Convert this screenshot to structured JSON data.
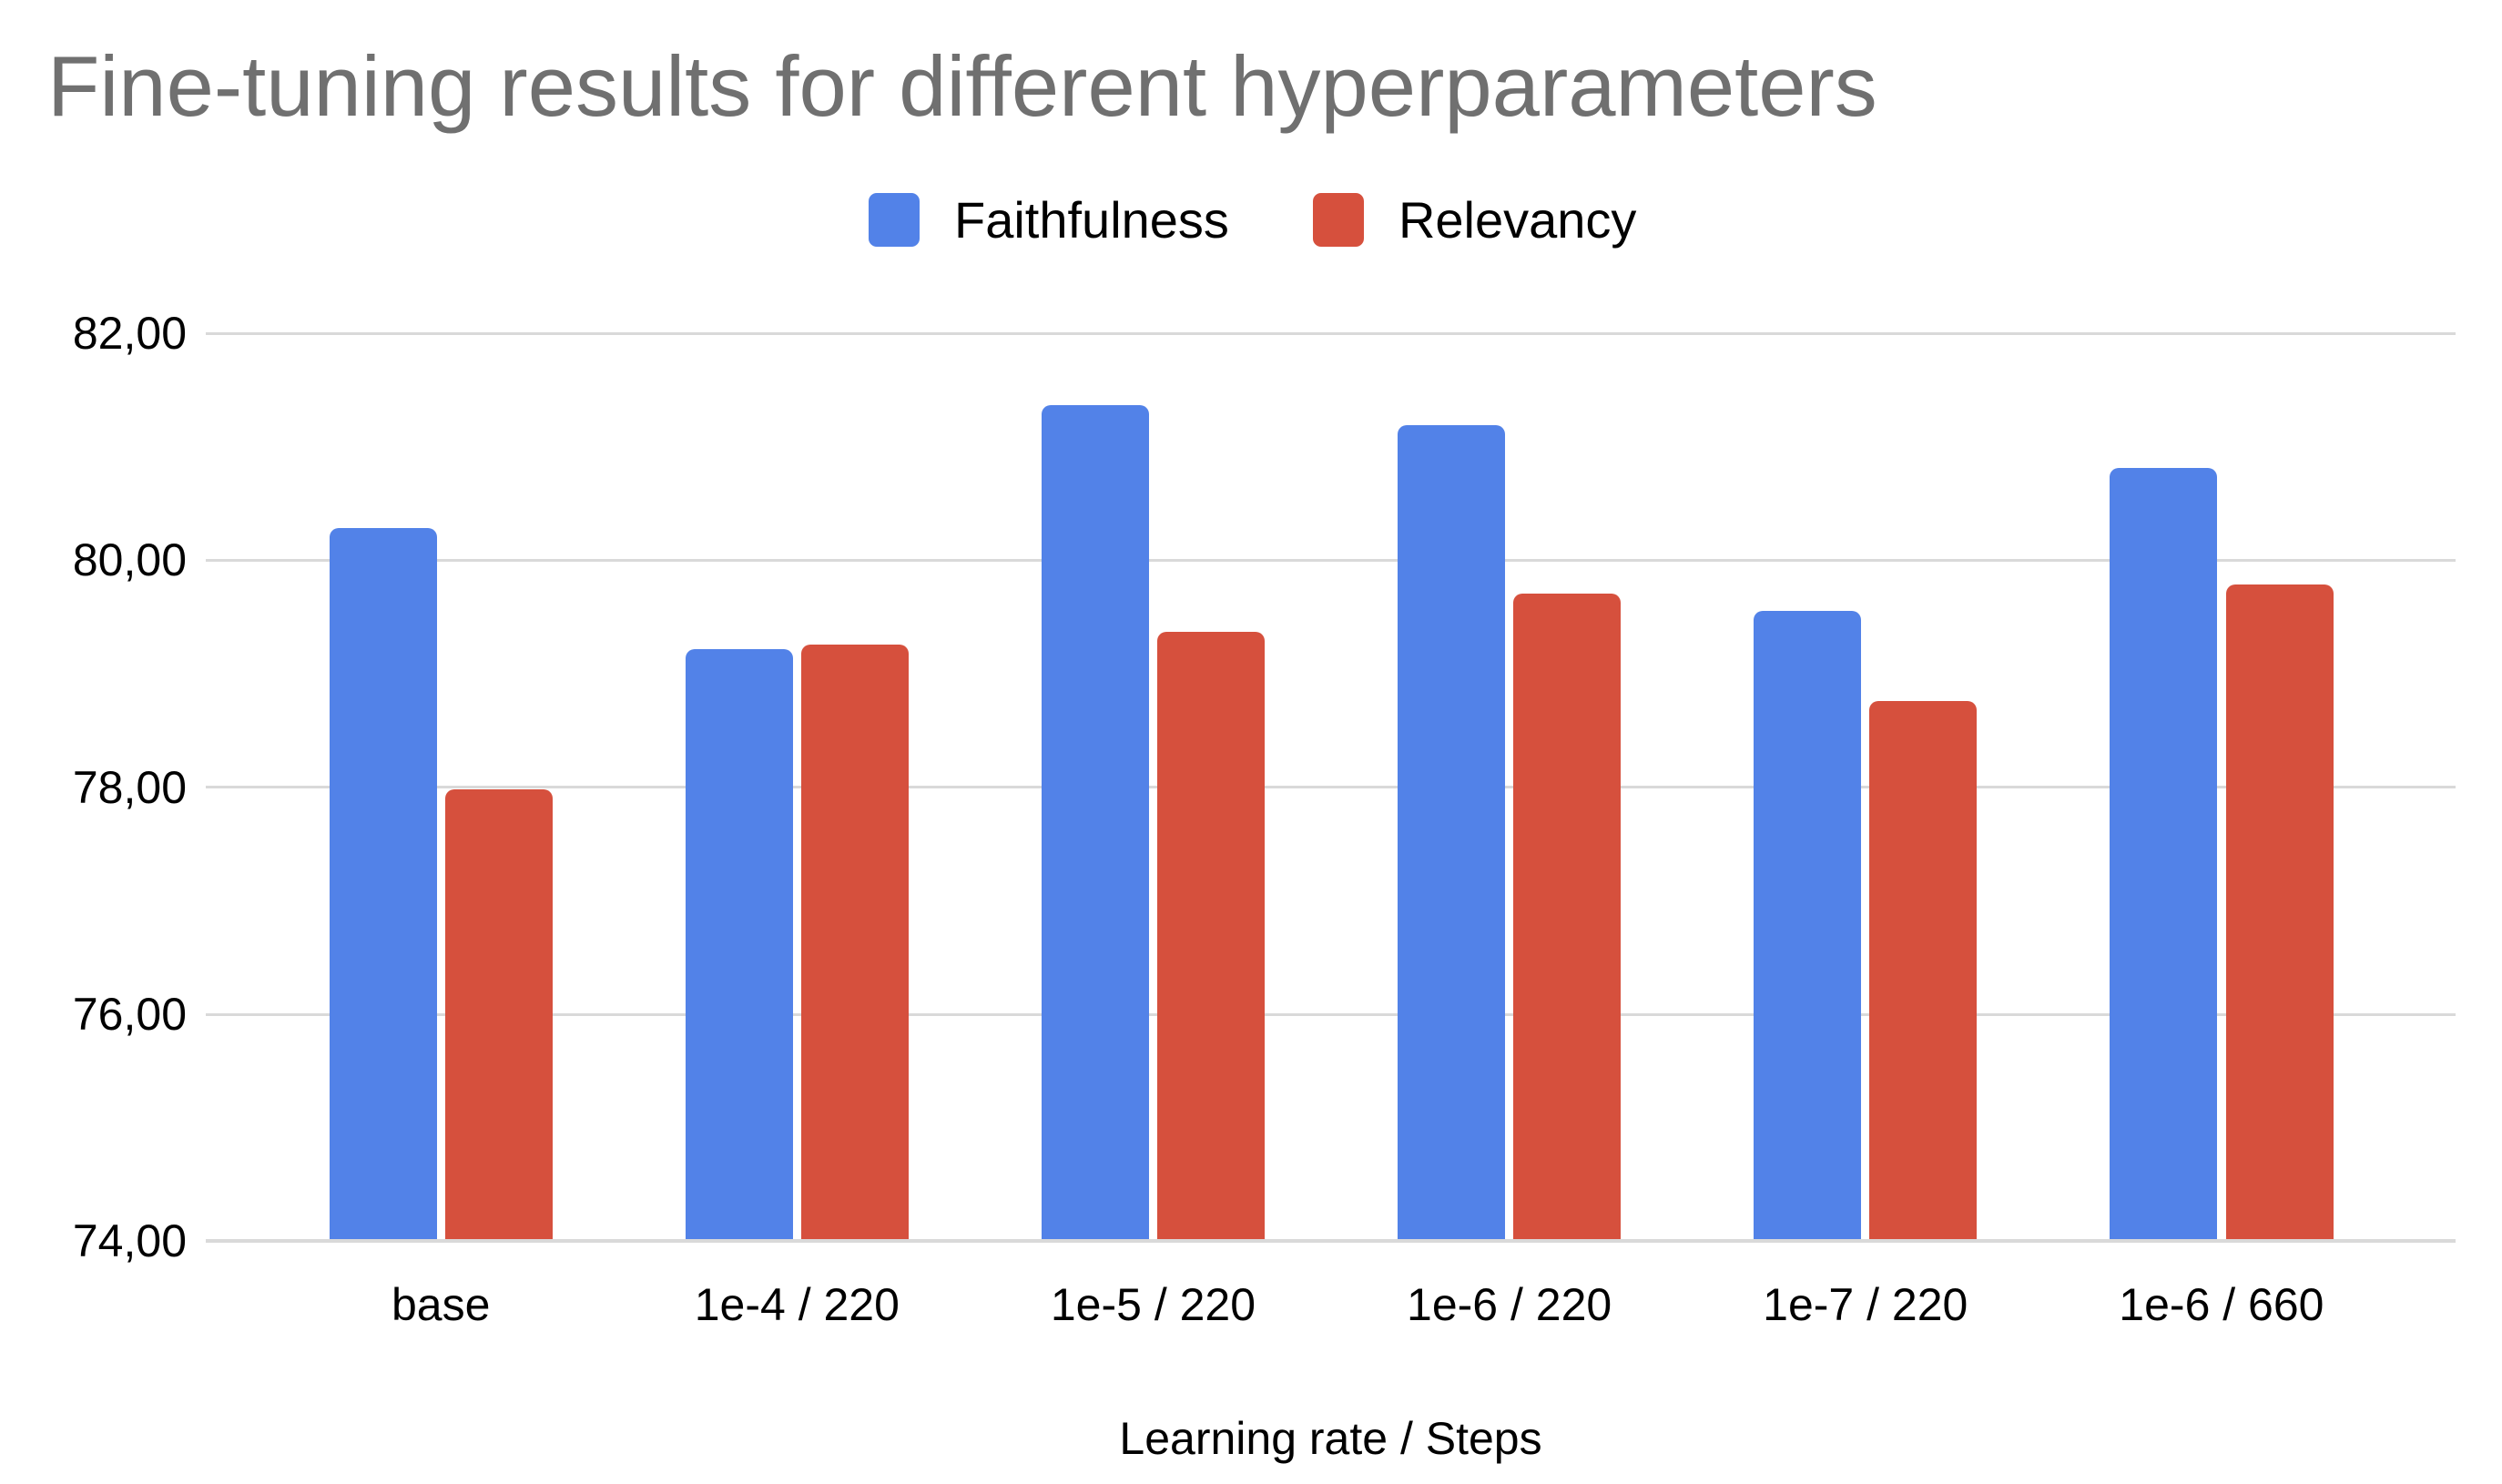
{
  "chart_data": {
    "type": "bar",
    "title": "Fine-tuning results for different hyperparameters",
    "xlabel": "Learning rate / Steps",
    "ylabel": "",
    "categories": [
      "base",
      "1e-4 / 220",
      "1e-5 / 220",
      "1e-6 / 220",
      "1e-7 / 220",
      "1e-6 / 660"
    ],
    "series": [
      {
        "name": "Faithfulness",
        "color": "#5282e8",
        "values": [
          80.28,
          79.22,
          81.37,
          81.19,
          79.55,
          80.81
        ]
      },
      {
        "name": "Relevancy",
        "color": "#d6503d",
        "values": [
          77.98,
          79.26,
          79.37,
          79.71,
          78.76,
          79.79
        ]
      }
    ],
    "ylim": [
      74,
      82
    ],
    "y_ticks": [
      {
        "value": 82,
        "label": "82,00"
      },
      {
        "value": 80,
        "label": "80,00"
      },
      {
        "value": 78,
        "label": "78,00"
      },
      {
        "value": 76,
        "label": "76,00"
      },
      {
        "value": 74,
        "label": "74,00"
      }
    ],
    "grid": "horizontal",
    "gridline_color": "#d9d9d9",
    "legend_position": "top",
    "title_color": "#707070",
    "decimal_separator": "comma"
  }
}
